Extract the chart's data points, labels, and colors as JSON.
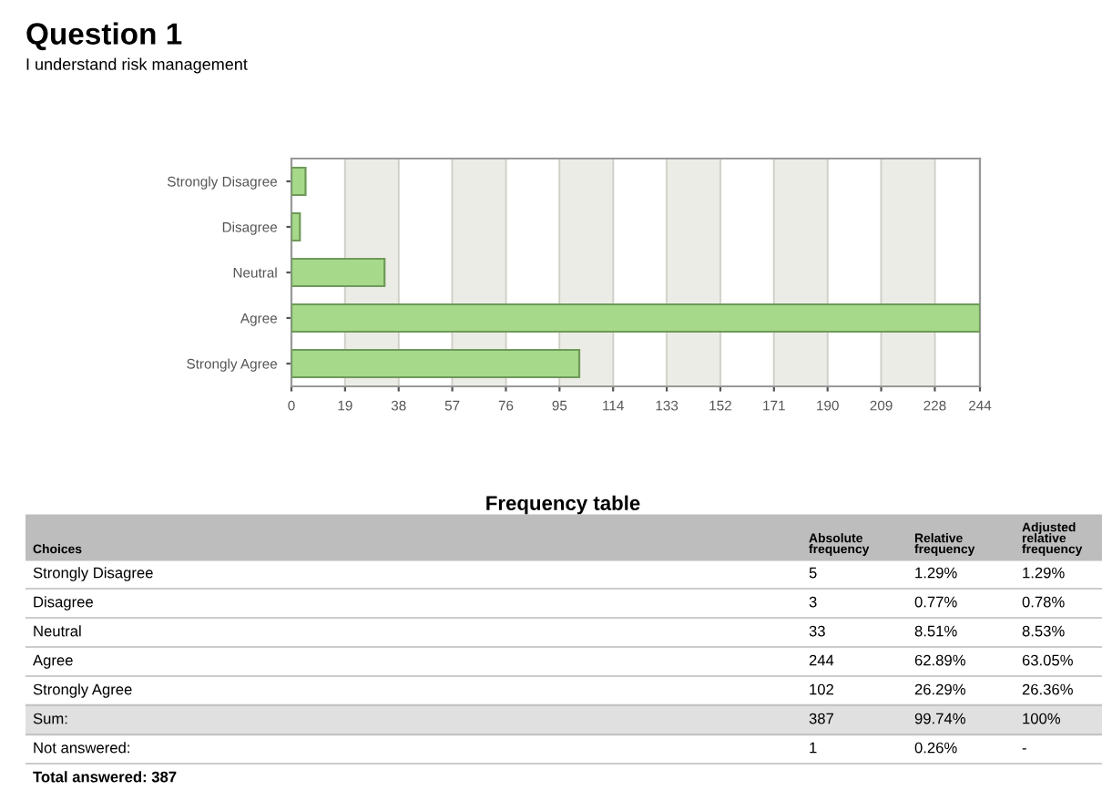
{
  "chart_data": [
    {
      "type": "bar",
      "title": "Question 1",
      "subtitle": "I understand risk management",
      "orientation": "horizontal",
      "categories": [
        "Strongly Disagree",
        "Disagree",
        "Neutral",
        "Agree",
        "Strongly Agree"
      ],
      "values": [
        5,
        3,
        33,
        244,
        102
      ],
      "color": "#a6d98a",
      "xlim": [
        0,
        244
      ],
      "xticks": [
        0,
        19,
        38,
        57,
        76,
        95,
        114,
        133,
        152,
        171,
        190,
        209,
        228,
        244
      ],
      "grid": "x"
    },
    {
      "type": "other",
      "title": "Frequency table",
      "annotations": [
        "Choices",
        "Absolute frequency",
        "Relative frequency",
        "Adjusted relative frequency",
        "Strongly Disagree",
        "5",
        "1.29%",
        "1.29%",
        "Disagree",
        "3",
        "0.77%",
        "0.78%",
        "Neutral",
        "33",
        "8.51%",
        "8.53%",
        "Agree",
        "244",
        "62.89%",
        "63.05%",
        "Strongly Agree",
        "102",
        "26.29%",
        "26.36%",
        "Sum:",
        "387",
        "99.74%",
        "100%",
        "Not answered:",
        "1",
        "0.26%",
        "-",
        "Total answered: 387"
      ]
    }
  ]
}
